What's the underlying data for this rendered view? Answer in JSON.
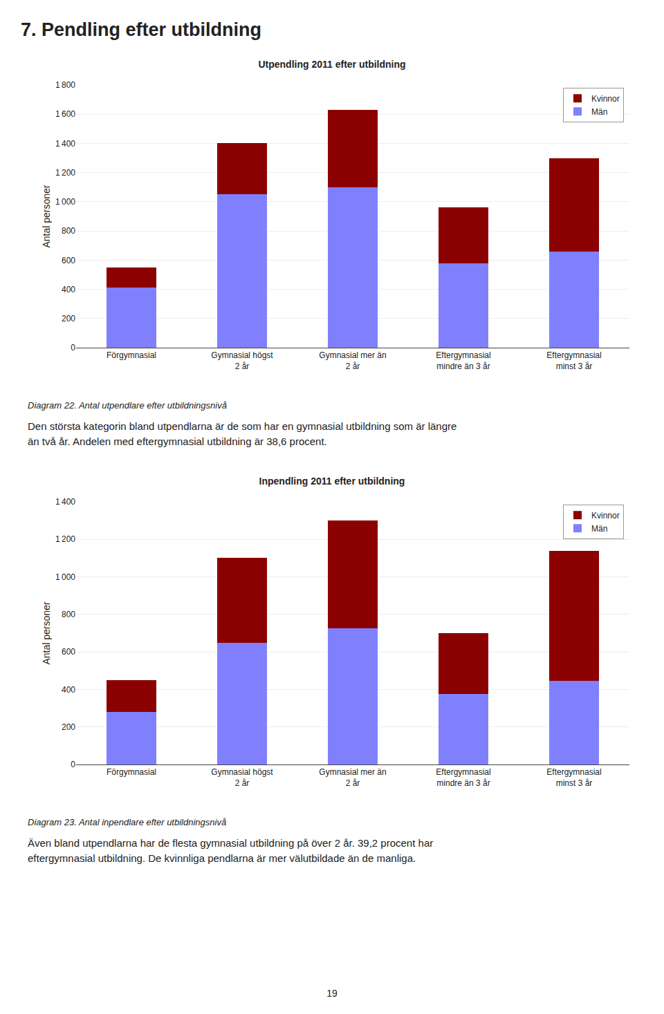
{
  "page_title": "7. Pendling efter utbildning",
  "page_number": "19",
  "chart_data": [
    {
      "type": "bar",
      "title": "Utpendling 2011 efter utbildning",
      "caption": "Diagram 22. Antal utpendlare efter utbildningsnivå",
      "text": [
        "Den största kategorin bland utpendlarna är de som har en gymnasial utbildning som är längre",
        "än två år. Andelen med eftergymnasial utbildning är 38,6 procent."
      ],
      "ylabel": "Antal personer",
      "categories": [
        "Förgymnasial",
        "Gymnasial högst\n2 år",
        "Gymnasial mer än\n2 år",
        "Eftergymnasial\nmindre än 3 år",
        "Eftergymnasial\nminst 3 år"
      ],
      "series": [
        {
          "name": "Män",
          "color": "#8080FF",
          "values": [
            410,
            1050,
            1100,
            580,
            660
          ]
        },
        {
          "name": "Kvinnor",
          "color": "#8B0000",
          "values": [
            140,
            350,
            530,
            380,
            640
          ]
        }
      ],
      "stacked": true,
      "ylim": [
        0,
        1800
      ],
      "yticks": [
        0,
        200,
        400,
        600,
        800,
        {
          "value": 1000,
          "label": "1 000"
        },
        {
          "value": 1200,
          "label": "1 200"
        },
        {
          "value": 1400,
          "label": "1 400"
        },
        {
          "value": 1600,
          "label": "1 600"
        },
        {
          "value": 1800,
          "label": "1 800"
        }
      ],
      "grid": true,
      "legend": "upper right"
    },
    {
      "type": "bar",
      "title": "Inpendling 2011 efter utbildning",
      "caption": "Diagram 23. Antal inpendlare efter utbildningsnivå",
      "text": [
        "Även bland utpendlarna har de flesta gymnasial utbildning på över 2 år. 39,2 procent har",
        "eftergymnasial utbildning. De kvinnliga pendlarna är mer välutbildade än de manliga."
      ],
      "ylabel": "Antal personer",
      "categories": [
        "Förgymnasial",
        "Gymnasial högst\n2 år",
        "Gymnasial mer än\n2 år",
        "Eftergymnasial\nmindre än 3 år",
        "Eftergymnasial\nminst 3 år"
      ],
      "series": [
        {
          "name": "Män",
          "color": "#8080FF",
          "values": [
            280,
            650,
            725,
            375,
            445
          ]
        },
        {
          "name": "Kvinnor",
          "color": "#8B0000",
          "values": [
            170,
            450,
            575,
            325,
            695
          ]
        }
      ],
      "stacked": true,
      "ylim": [
        0,
        1400
      ],
      "yticks": [
        0,
        200,
        400,
        600,
        800,
        {
          "value": 1000,
          "label": "1 000"
        },
        {
          "value": 1200,
          "label": "1 200"
        },
        {
          "value": 1400,
          "label": "1 400"
        }
      ],
      "grid": true,
      "legend": "upper right"
    }
  ]
}
